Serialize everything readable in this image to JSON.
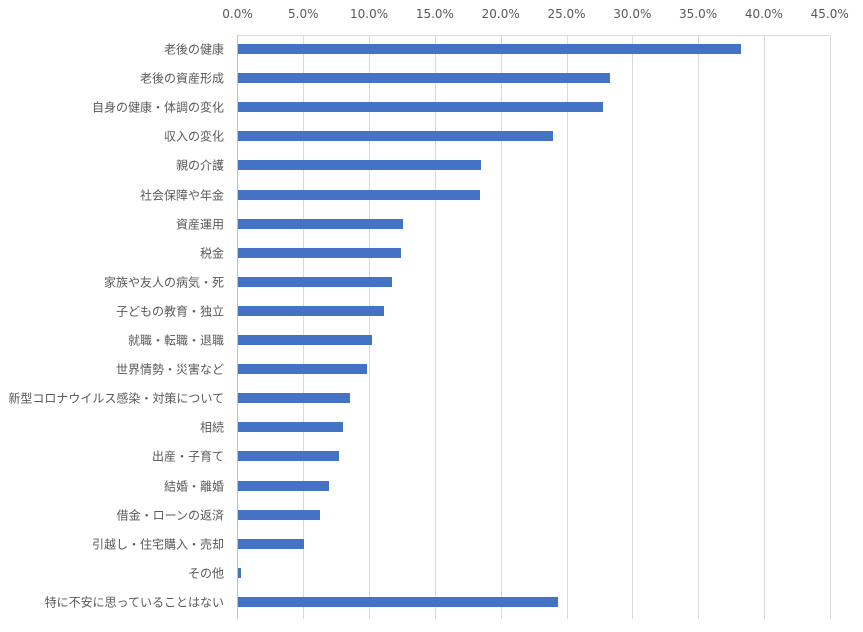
{
  "chart_data": {
    "type": "bar",
    "orientation": "horizontal",
    "title": "",
    "xlabel": "",
    "ylabel": "",
    "xlim": [
      0,
      45
    ],
    "x_ticks": [
      "0.0%",
      "5.0%",
      "10.0%",
      "15.0%",
      "20.0%",
      "25.0%",
      "30.0%",
      "35.0%",
      "40.0%",
      "45.0%"
    ],
    "grid": true,
    "legend": null,
    "bar_color": "#4472c4",
    "categories": [
      "老後の健康",
      "老後の資産形成",
      "自身の健康・体調の変化",
      "収入の変化",
      "親の介護",
      "社会保障や年金",
      "資産運用",
      "税金",
      "家族や友人の病気・死",
      "子どもの教育・独立",
      "就職・転職・退職",
      "世界情勢・災害など",
      "新型コロナウイルス感染・対策について",
      "相続",
      "出産・子育て",
      "結婚・離婚",
      "借金・ローンの返済",
      "引越し・住宅購入・売却",
      "その他",
      "特に不安に思っていることはない"
    ],
    "values": [
      38.2,
      28.3,
      27.7,
      23.9,
      18.5,
      18.4,
      12.5,
      12.4,
      11.7,
      11.1,
      10.2,
      9.8,
      8.5,
      8.0,
      7.7,
      6.9,
      6.2,
      5.0,
      0.2,
      24.3
    ]
  }
}
